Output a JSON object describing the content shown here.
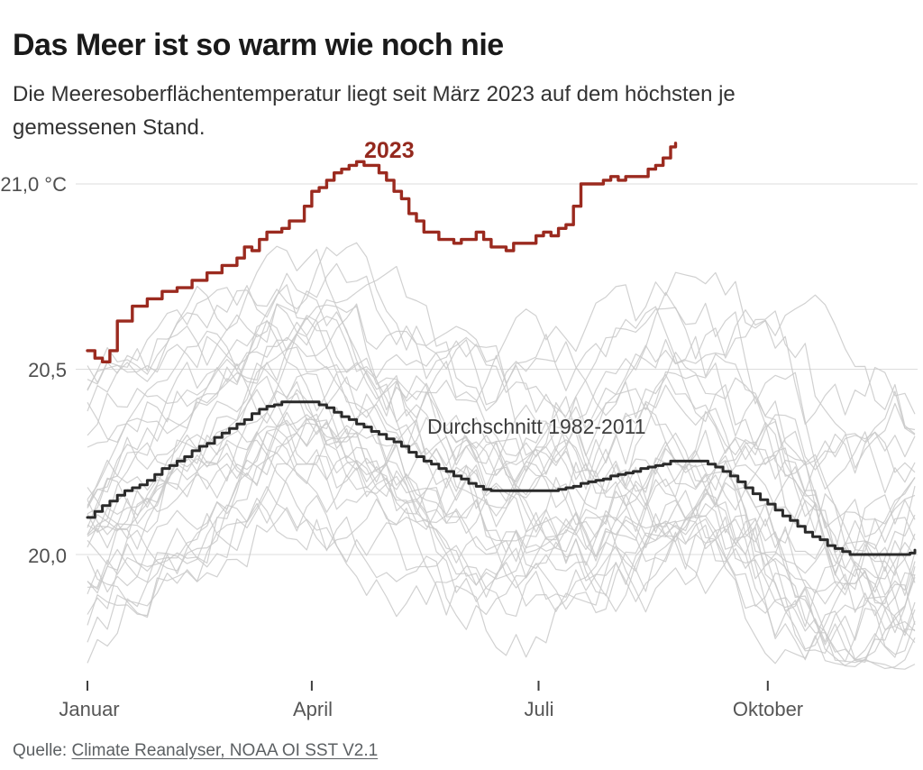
{
  "header": {
    "title": "Das Meer ist so warm wie noch nie",
    "subtitle_line1": "Die Meeresoberflächentemperatur liegt seit März 2023 auf dem höchsten je",
    "subtitle_line2": "gemessenen Stand."
  },
  "source": {
    "prefix": "Quelle: ",
    "link_text": "Climate Reanalyser, NOAA OI SST V2.1"
  },
  "chart_data": {
    "type": "line",
    "title": "Das Meer ist so warm wie noch nie",
    "unit": "°C",
    "x_axis": {
      "ticks": [
        {
          "label": "Januar",
          "day": 0
        },
        {
          "label": "April",
          "day": 90
        },
        {
          "label": "Juli",
          "day": 181
        },
        {
          "label": "Oktober",
          "day": 273
        }
      ],
      "range_days": [
        0,
        332
      ],
      "grid": false
    },
    "y_axis": {
      "ticks": [
        {
          "label": "21,0 °C",
          "value": 21.0
        },
        {
          "label": "20,5",
          "value": 20.5
        },
        {
          "label": "20,0",
          "value": 20.0
        }
      ],
      "range": [
        19.65,
        21.15
      ],
      "grid": true,
      "grid_color": "#dcdcdc"
    },
    "series": [
      {
        "name": "2023",
        "color": "#9b2a1f",
        "points": [
          [
            0,
            20.55
          ],
          [
            2,
            20.54
          ],
          [
            5,
            20.52
          ],
          [
            7,
            20.51
          ],
          [
            9,
            20.55
          ],
          [
            11,
            20.61
          ],
          [
            13,
            20.64
          ],
          [
            15,
            20.63
          ],
          [
            17,
            20.65
          ],
          [
            19,
            20.68
          ],
          [
            22,
            20.67
          ],
          [
            25,
            20.7
          ],
          [
            28,
            20.69
          ],
          [
            31,
            20.72
          ],
          [
            34,
            20.71
          ],
          [
            37,
            20.73
          ],
          [
            40,
            20.72
          ],
          [
            43,
            20.75
          ],
          [
            46,
            20.74
          ],
          [
            49,
            20.77
          ],
          [
            52,
            20.76
          ],
          [
            55,
            20.79
          ],
          [
            58,
            20.78
          ],
          [
            61,
            20.81
          ],
          [
            63,
            20.83
          ],
          [
            66,
            20.82
          ],
          [
            69,
            20.85
          ],
          [
            71,
            20.87
          ],
          [
            74,
            20.86
          ],
          [
            77,
            20.89
          ],
          [
            79,
            20.88
          ],
          [
            82,
            20.91
          ],
          [
            84,
            20.9
          ],
          [
            86,
            20.93
          ],
          [
            88,
            20.95
          ],
          [
            90,
            20.98
          ],
          [
            92,
            21.0
          ],
          [
            94,
            20.99
          ],
          [
            96,
            21.01
          ],
          [
            98,
            21.03
          ],
          [
            100,
            21.02
          ],
          [
            102,
            21.04
          ],
          [
            104,
            21.05
          ],
          [
            107,
            21.06
          ],
          [
            110,
            21.05
          ],
          [
            113,
            21.06
          ],
          [
            116,
            21.04
          ],
          [
            119,
            21.02
          ],
          [
            121,
            21.0
          ],
          [
            123,
            20.98
          ],
          [
            125,
            20.97
          ],
          [
            127,
            20.94
          ],
          [
            129,
            20.92
          ],
          [
            131,
            20.92
          ],
          [
            133,
            20.88
          ],
          [
            135,
            20.87
          ],
          [
            137,
            20.88
          ],
          [
            139,
            20.86
          ],
          [
            141,
            20.85
          ],
          [
            143,
            20.86
          ],
          [
            145,
            20.84
          ],
          [
            148,
            20.84
          ],
          [
            150,
            20.85
          ],
          [
            152,
            20.84
          ],
          [
            154,
            20.86
          ],
          [
            156,
            20.87
          ],
          [
            158,
            20.85
          ],
          [
            160,
            20.84
          ],
          [
            162,
            20.83
          ],
          [
            164,
            20.82
          ],
          [
            166,
            20.83
          ],
          [
            168,
            20.82
          ],
          [
            170,
            20.84
          ],
          [
            172,
            20.83
          ],
          [
            175,
            20.85
          ],
          [
            177,
            20.84
          ],
          [
            179,
            20.86
          ],
          [
            181,
            20.85
          ],
          [
            183,
            20.87
          ],
          [
            186,
            20.86
          ],
          [
            188,
            20.88
          ],
          [
            190,
            20.87
          ],
          [
            192,
            20.89
          ],
          [
            194,
            20.92
          ],
          [
            196,
            20.96
          ],
          [
            198,
            21.0
          ],
          [
            200,
            20.99
          ],
          [
            202,
            21.01
          ],
          [
            204,
            21.0
          ],
          [
            206,
            21.02
          ],
          [
            208,
            21.0
          ],
          [
            210,
            21.02
          ],
          [
            212,
            21.01
          ],
          [
            214,
            21.0
          ],
          [
            216,
            21.02
          ],
          [
            218,
            21.01
          ],
          [
            220,
            21.03
          ],
          [
            222,
            21.02
          ],
          [
            224,
            21.04
          ],
          [
            226,
            21.03
          ],
          [
            228,
            21.05
          ],
          [
            230,
            21.06
          ],
          [
            232,
            21.08
          ],
          [
            234,
            21.1
          ],
          [
            236,
            21.11
          ]
        ]
      },
      {
        "name": "Durchschnitt 1982-2011",
        "color": "#2a2a2a",
        "points": [
          [
            0,
            20.1
          ],
          [
            6,
            20.13
          ],
          [
            12,
            20.16
          ],
          [
            18,
            20.18
          ],
          [
            24,
            20.2
          ],
          [
            30,
            20.23
          ],
          [
            36,
            20.25
          ],
          [
            42,
            20.28
          ],
          [
            48,
            20.3
          ],
          [
            54,
            20.33
          ],
          [
            60,
            20.35
          ],
          [
            66,
            20.38
          ],
          [
            72,
            20.4
          ],
          [
            78,
            20.41
          ],
          [
            84,
            20.41
          ],
          [
            90,
            20.41
          ],
          [
            95,
            20.4
          ],
          [
            100,
            20.38
          ],
          [
            106,
            20.36
          ],
          [
            112,
            20.34
          ],
          [
            118,
            20.32
          ],
          [
            124,
            20.3
          ],
          [
            130,
            20.27
          ],
          [
            136,
            20.25
          ],
          [
            142,
            20.23
          ],
          [
            148,
            20.21
          ],
          [
            154,
            20.19
          ],
          [
            158,
            20.18
          ],
          [
            162,
            20.17
          ],
          [
            170,
            20.17
          ],
          [
            178,
            20.17
          ],
          [
            186,
            20.17
          ],
          [
            192,
            20.18
          ],
          [
            198,
            20.19
          ],
          [
            204,
            20.2
          ],
          [
            210,
            20.21
          ],
          [
            216,
            20.22
          ],
          [
            222,
            20.23
          ],
          [
            228,
            20.24
          ],
          [
            234,
            20.25
          ],
          [
            240,
            20.25
          ],
          [
            246,
            20.25
          ],
          [
            250,
            20.24
          ],
          [
            254,
            20.23
          ],
          [
            258,
            20.21
          ],
          [
            262,
            20.19
          ],
          [
            266,
            20.17
          ],
          [
            270,
            20.15
          ],
          [
            274,
            20.13
          ],
          [
            278,
            20.11
          ],
          [
            282,
            20.09
          ],
          [
            286,
            20.07
          ],
          [
            290,
            20.05
          ],
          [
            294,
            20.04
          ],
          [
            298,
            20.02
          ],
          [
            302,
            20.01
          ],
          [
            306,
            20.0
          ],
          [
            312,
            20.0
          ],
          [
            318,
            20.0
          ],
          [
            324,
            20.0
          ],
          [
            328,
            20.0
          ],
          [
            332,
            20.01
          ]
        ]
      }
    ],
    "background_years": {
      "count": 32,
      "color": "#c9c9c9",
      "seed": 20231,
      "offset_range": [
        -0.24,
        0.32
      ],
      "value_band": [
        19.72,
        20.96
      ]
    }
  }
}
